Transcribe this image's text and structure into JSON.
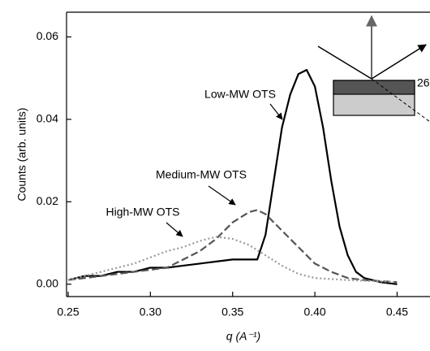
{
  "chart_data": {
    "type": "line",
    "y_label": "Counts (arb. units)",
    "x_label": "q (A⁻¹)",
    "inset_label": "26",
    "xlim": [
      0.25,
      0.47
    ],
    "ylim": [
      -0.003,
      0.066
    ],
    "xticks": [
      0.25,
      {
        "value": 0.3,
        "label": "0.30"
      },
      0.35,
      {
        "value": 0.4,
        "label": "0.40"
      },
      0.45
    ],
    "yticks": [
      {
        "value": 0,
        "label": "0.00"
      },
      0.02,
      0.04,
      0.06
    ],
    "series": [
      {
        "name": "Low-MW OTS",
        "color": "#000000",
        "dash": "solid",
        "width": 2.2,
        "x": [
          0.25,
          0.26,
          0.27,
          0.28,
          0.29,
          0.3,
          0.31,
          0.32,
          0.33,
          0.34,
          0.35,
          0.36,
          0.365,
          0.37,
          0.375,
          0.38,
          0.385,
          0.39,
          0.395,
          0.4,
          0.405,
          0.41,
          0.415,
          0.42,
          0.425,
          0.43,
          0.44,
          0.45
        ],
        "values": [
          0.001,
          0.002,
          0.002,
          0.003,
          0.003,
          0.004,
          0.004,
          0.0045,
          0.005,
          0.0055,
          0.006,
          0.006,
          0.006,
          0.012,
          0.025,
          0.038,
          0.046,
          0.051,
          0.052,
          0.048,
          0.038,
          0.025,
          0.014,
          0.007,
          0.003,
          0.0015,
          0.0005,
          0.0
        ]
      },
      {
        "name": "Medium-MW OTS",
        "color": "#555555",
        "dash": "dashed",
        "width": 2.2,
        "x": [
          0.25,
          0.27,
          0.29,
          0.3,
          0.31,
          0.32,
          0.33,
          0.34,
          0.35,
          0.36,
          0.365,
          0.37,
          0.38,
          0.39,
          0.4,
          0.41,
          0.42,
          0.43,
          0.45
        ],
        "values": [
          0.001,
          0.002,
          0.003,
          0.0035,
          0.004,
          0.006,
          0.008,
          0.011,
          0.015,
          0.0175,
          0.018,
          0.017,
          0.013,
          0.009,
          0.005,
          0.003,
          0.0015,
          0.001,
          0.0005
        ]
      },
      {
        "name": "High-MW OTS",
        "color": "#999999",
        "dash": "dotted",
        "width": 2.2,
        "x": [
          0.25,
          0.27,
          0.29,
          0.3,
          0.31,
          0.32,
          0.33,
          0.34,
          0.35,
          0.36,
          0.37,
          0.38,
          0.39,
          0.4,
          0.42,
          0.45
        ],
        "values": [
          0.001,
          0.003,
          0.005,
          0.0065,
          0.008,
          0.009,
          0.0105,
          0.0115,
          0.011,
          0.0095,
          0.007,
          0.0045,
          0.0025,
          0.0015,
          0.001,
          0.0005
        ]
      }
    ]
  }
}
